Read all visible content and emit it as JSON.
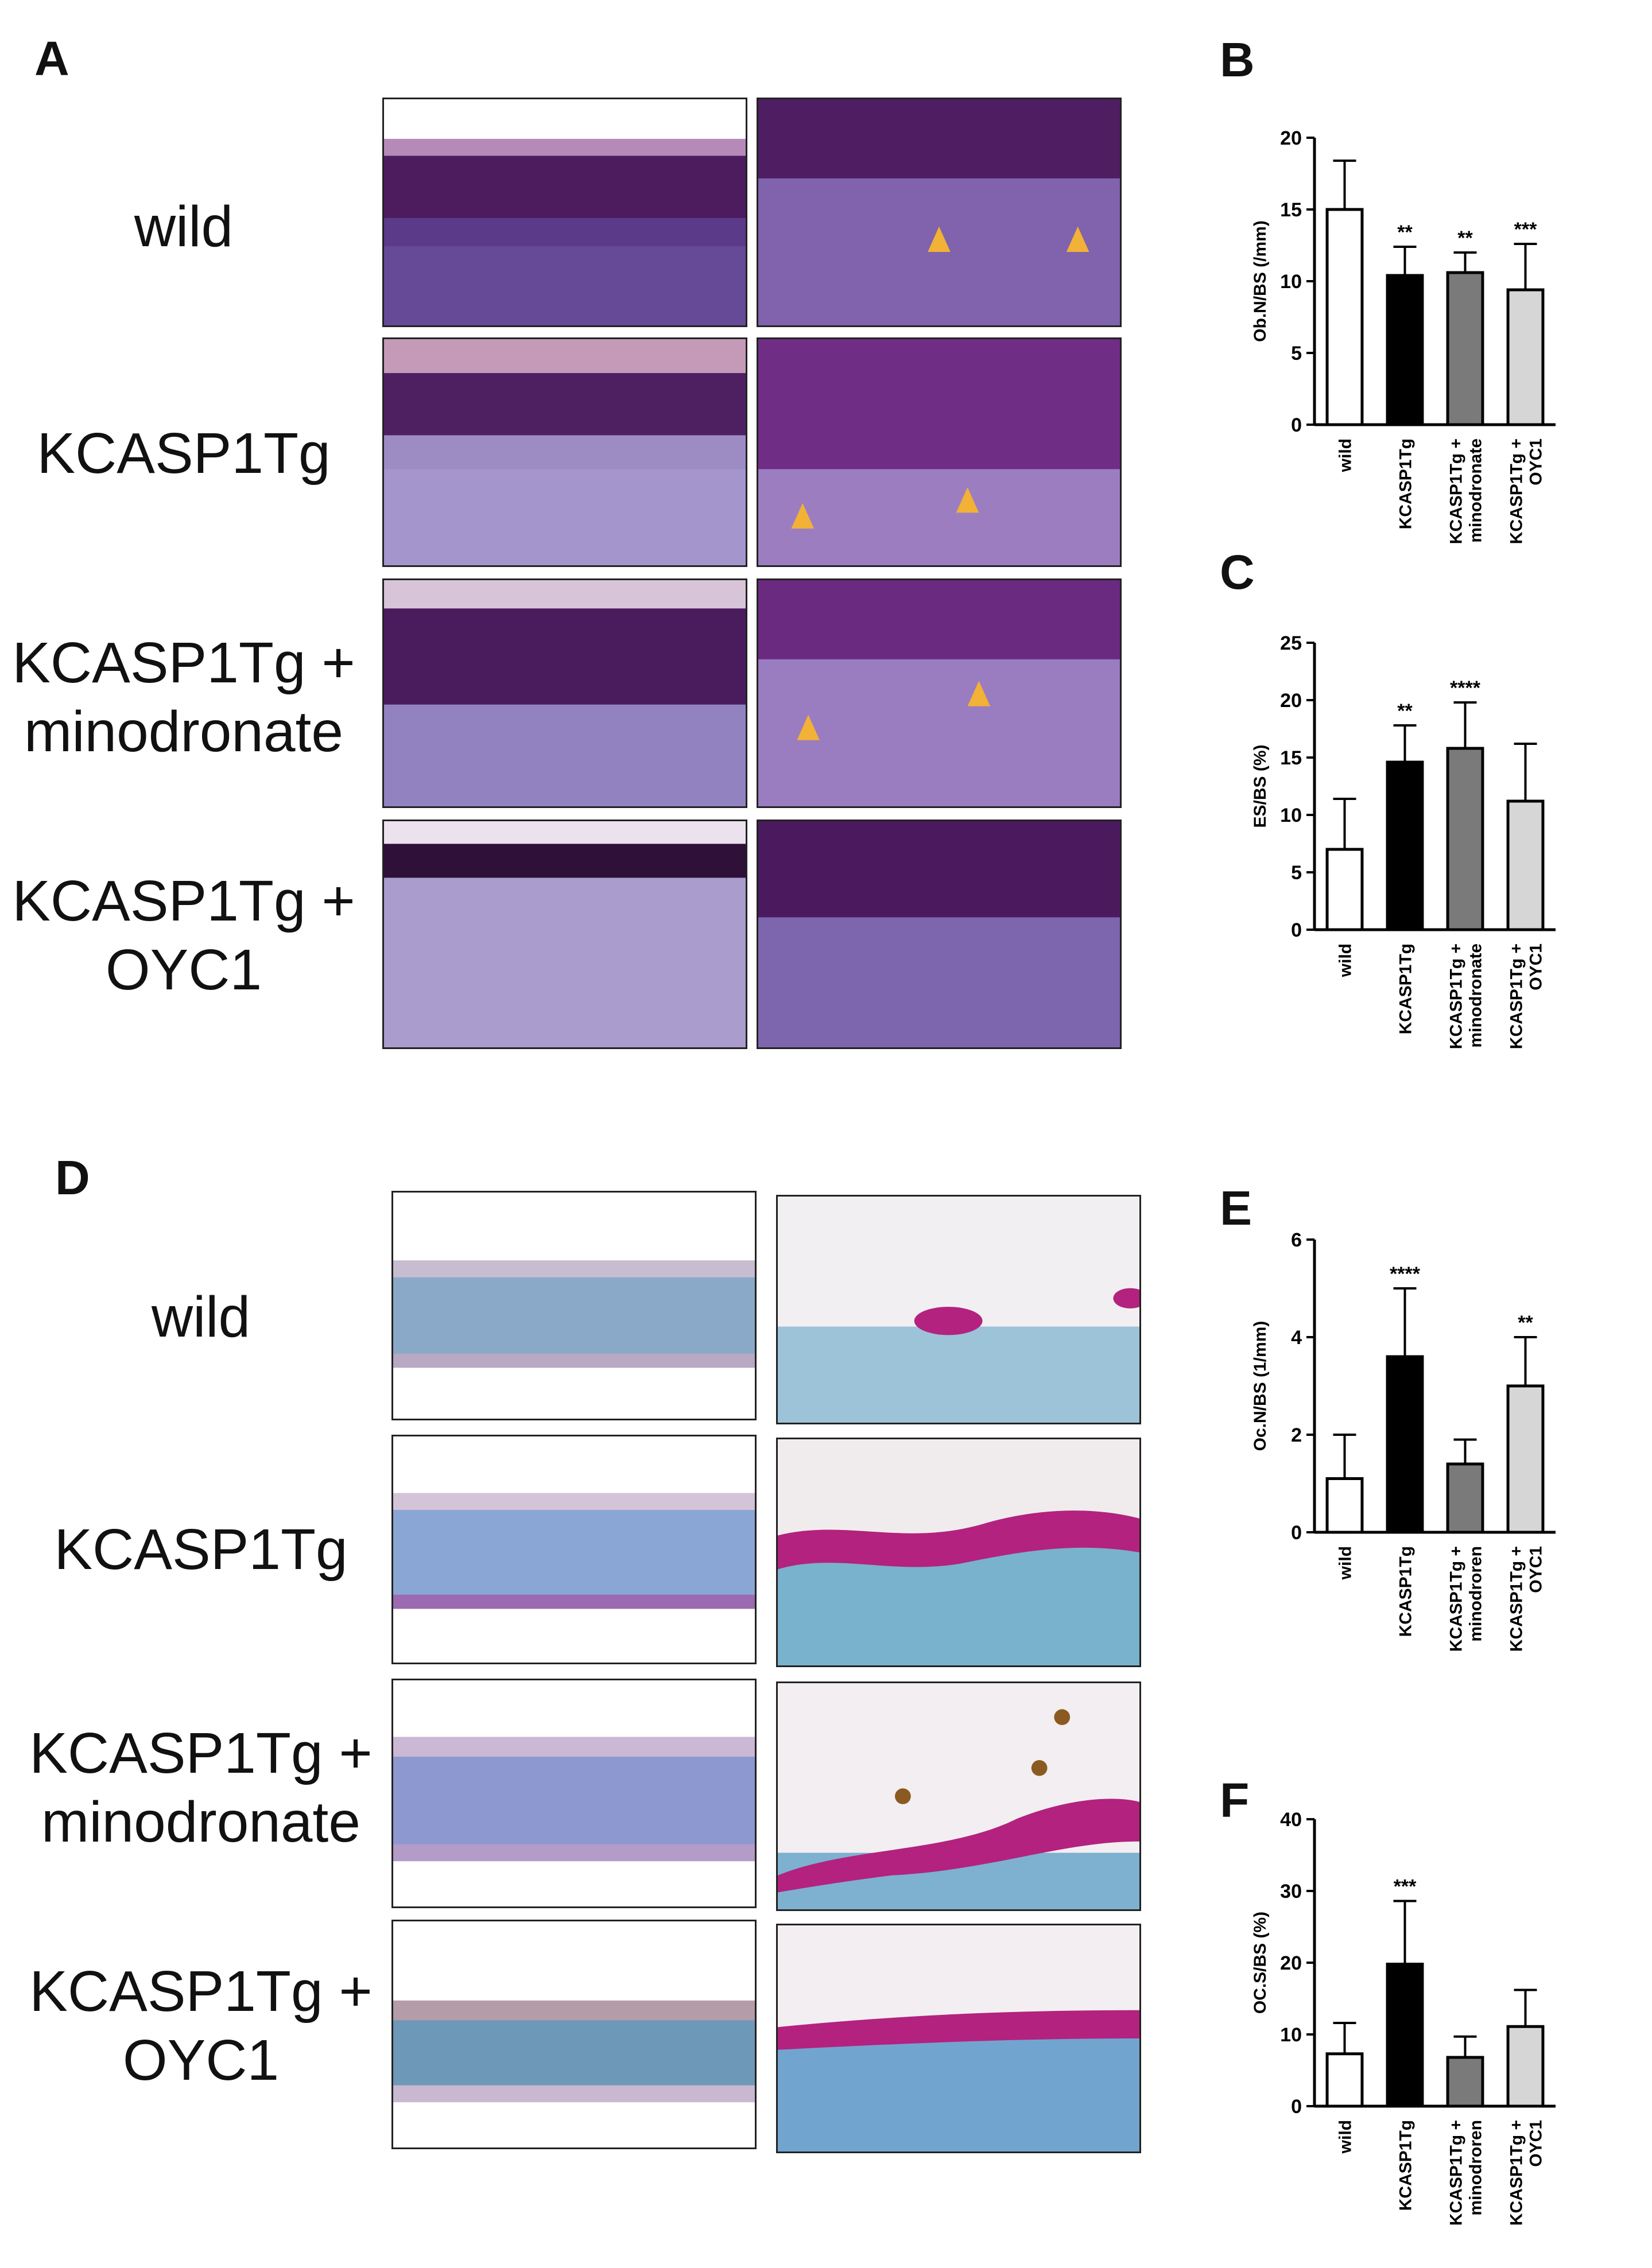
{
  "panels": {
    "A": {
      "letter": "A",
      "rows": [
        {
          "line1": "wild",
          "line2": ""
        },
        {
          "line1": "KCASP1Tg",
          "line2": ""
        },
        {
          "line1": "KCASP1Tg +",
          "line2": "minodronate"
        },
        {
          "line1": "KCASP1Tg +",
          "line2": "OYC1"
        }
      ]
    },
    "D": {
      "letter": "D",
      "rows": [
        {
          "line1": "wild",
          "line2": ""
        },
        {
          "line1": "KCASP1Tg",
          "line2": ""
        },
        {
          "line1": "KCASP1Tg +",
          "line2": "minodronate"
        },
        {
          "line1": "KCASP1Tg +",
          "line2": "OYC1"
        }
      ]
    }
  },
  "colors": {
    "he_dark": "#5a2468",
    "he_mid": "#7a3f8c",
    "he_light": "#a77bbf",
    "trap_bg": "#f4f1f6",
    "trap_blue": "#7d9fc9",
    "trap_magenta": "#b3227e",
    "arrowhead": "#f2b137"
  },
  "chart_data": [
    {
      "panel": "B",
      "type": "bar",
      "ylabel": "Ob.N/BS (/mm)",
      "ylim": [
        0,
        20
      ],
      "yticks": [
        0,
        5,
        10,
        15,
        20
      ],
      "categories": [
        "wild",
        "KCASP1Tg",
        "KCASP1Tg +\nminodronate",
        "KCASP1Tg +\nOYC1"
      ],
      "values": [
        15.0,
        10.4,
        10.6,
        9.4
      ],
      "errors": [
        3.4,
        2.0,
        1.4,
        3.2
      ],
      "significance": [
        "",
        "**",
        "**",
        "***"
      ],
      "bar_colors": [
        "#ffffff",
        "#000000",
        "#7a7a7a",
        "#d6d6d6"
      ]
    },
    {
      "panel": "C",
      "type": "bar",
      "ylabel": "ES/BS (%)",
      "ylim": [
        0,
        25
      ],
      "yticks": [
        0,
        5,
        10,
        15,
        20,
        25
      ],
      "categories": [
        "wild",
        "KCASP1Tg",
        "KCASP1Tg +\nminodronate",
        "KCASP1Tg +\nOYC1"
      ],
      "values": [
        7.0,
        14.6,
        15.8,
        11.2
      ],
      "errors": [
        4.4,
        3.2,
        4.0,
        5.0
      ],
      "significance": [
        "",
        "**",
        "****",
        ""
      ],
      "bar_colors": [
        "#ffffff",
        "#000000",
        "#7a7a7a",
        "#d6d6d6"
      ]
    },
    {
      "panel": "E",
      "type": "bar",
      "ylabel": "Oc.N/BS (1/mm)",
      "ylim": [
        0,
        6
      ],
      "yticks": [
        0,
        2,
        4,
        6
      ],
      "categories": [
        "wild",
        "KCASP1Tg",
        "KCASP1Tg +\nminodroren",
        "KCASP1Tg +\nOYC1"
      ],
      "values": [
        1.1,
        3.6,
        1.4,
        3.0
      ],
      "errors": [
        0.9,
        1.4,
        0.5,
        1.0
      ],
      "significance": [
        "",
        "****",
        "",
        "**"
      ],
      "bar_colors": [
        "#ffffff",
        "#000000",
        "#7a7a7a",
        "#d6d6d6"
      ]
    },
    {
      "panel": "F",
      "type": "bar",
      "ylabel": "OC.S/BS (%)",
      "ylim": [
        0,
        40
      ],
      "yticks": [
        0,
        10,
        20,
        30,
        40
      ],
      "categories": [
        "wild",
        "KCASP1Tg",
        "KCASP1Tg +\nminodroren",
        "KCASP1Tg +\nOYC1"
      ],
      "values": [
        7.3,
        19.8,
        6.8,
        11.1
      ],
      "errors": [
        4.3,
        8.8,
        2.9,
        5.1
      ],
      "significance": [
        "",
        "***",
        "",
        ""
      ],
      "bar_colors": [
        "#ffffff",
        "#000000",
        "#7a7a7a",
        "#d6d6d6"
      ]
    }
  ]
}
